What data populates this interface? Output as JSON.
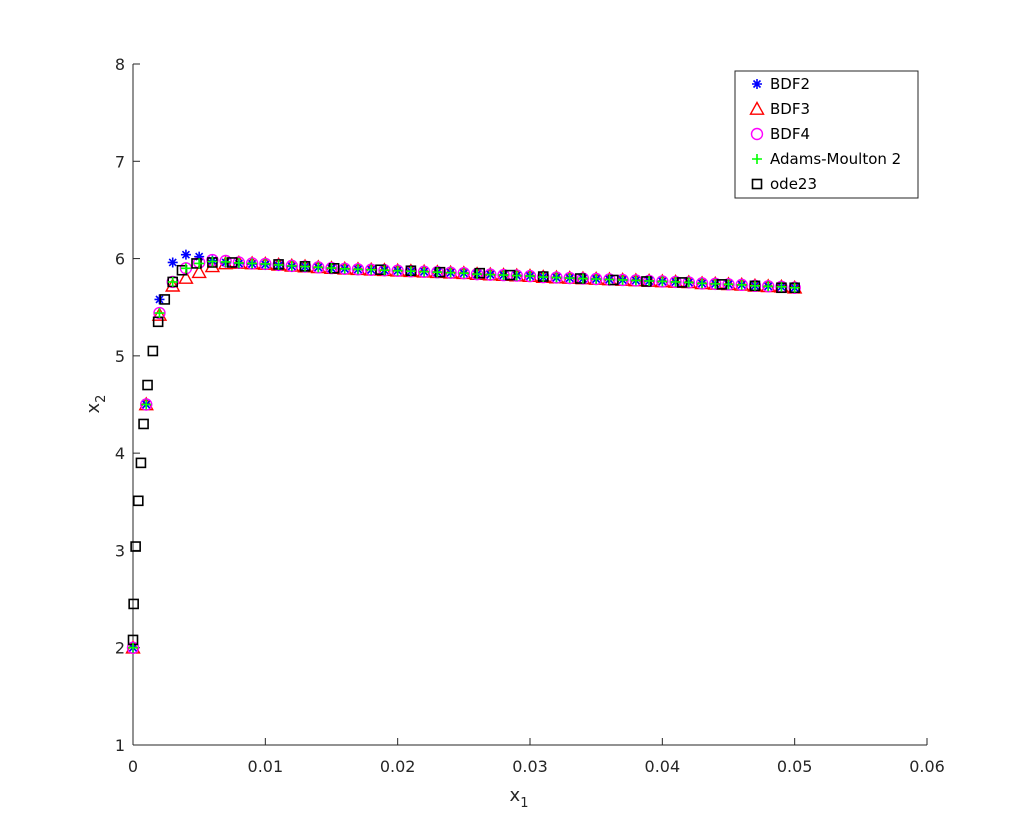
{
  "chart_data": {
    "type": "scatter",
    "xlabel": "x",
    "xlabel_sub": "1",
    "ylabel": "x",
    "ylabel_sub": "2",
    "xlim": [
      0,
      0.06
    ],
    "ylim": [
      1,
      8
    ],
    "xticks": [
      0,
      0.01,
      0.02,
      0.03,
      0.04,
      0.05,
      0.06
    ],
    "xtick_labels": [
      "0",
      "0.01",
      "0.02",
      "0.03",
      "0.04",
      "0.05",
      "0.06"
    ],
    "yticks": [
      1,
      2,
      3,
      4,
      5,
      6,
      7,
      8
    ],
    "ytick_labels": [
      "1",
      "2",
      "3",
      "4",
      "5",
      "6",
      "7",
      "8"
    ],
    "grid": false,
    "legend_position": "top-right",
    "series": [
      {
        "name": "BDF2",
        "marker": "asterisk",
        "color": "#0000ff",
        "x": [
          0,
          0.001,
          0.002,
          0.003,
          0.004,
          0.005,
          0.006,
          0.007,
          0.008,
          0.009,
          0.01,
          0.011,
          0.012,
          0.013,
          0.014,
          0.015,
          0.016,
          0.017,
          0.018,
          0.019,
          0.02,
          0.021,
          0.022,
          0.023,
          0.024,
          0.025,
          0.026,
          0.027,
          0.028,
          0.029,
          0.03,
          0.031,
          0.032,
          0.033,
          0.034,
          0.035,
          0.036,
          0.037,
          0.038,
          0.039,
          0.04,
          0.041,
          0.042,
          0.043,
          0.044,
          0.045,
          0.046,
          0.047,
          0.048,
          0.049,
          0.05
        ],
        "y": [
          2.0,
          4.5,
          5.58,
          5.96,
          6.04,
          6.02,
          5.98,
          5.96,
          5.95,
          5.945,
          5.94,
          5.93,
          5.92,
          5.915,
          5.91,
          5.9,
          5.895,
          5.89,
          5.885,
          5.88,
          5.875,
          5.87,
          5.865,
          5.86,
          5.855,
          5.85,
          5.84,
          5.835,
          5.83,
          5.825,
          5.82,
          5.81,
          5.805,
          5.8,
          5.795,
          5.79,
          5.785,
          5.78,
          5.775,
          5.77,
          5.765,
          5.76,
          5.755,
          5.745,
          5.74,
          5.735,
          5.73,
          5.72,
          5.715,
          5.71,
          5.7
        ]
      },
      {
        "name": "BDF3",
        "marker": "triangle",
        "color": "#ff0000",
        "x": [
          0,
          0.001,
          0.002,
          0.003,
          0.004,
          0.005,
          0.006,
          0.007,
          0.008,
          0.009,
          0.01,
          0.011,
          0.012,
          0.013,
          0.014,
          0.015,
          0.016,
          0.017,
          0.018,
          0.019,
          0.02,
          0.021,
          0.022,
          0.023,
          0.024,
          0.025,
          0.026,
          0.027,
          0.028,
          0.029,
          0.03,
          0.031,
          0.032,
          0.033,
          0.034,
          0.035,
          0.036,
          0.037,
          0.038,
          0.039,
          0.04,
          0.041,
          0.042,
          0.043,
          0.044,
          0.045,
          0.046,
          0.047,
          0.048,
          0.049,
          0.05
        ],
        "y": [
          2.0,
          4.5,
          5.42,
          5.72,
          5.8,
          5.86,
          5.92,
          5.95,
          5.955,
          5.95,
          5.945,
          5.935,
          5.925,
          5.918,
          5.91,
          5.902,
          5.895,
          5.89,
          5.885,
          5.88,
          5.875,
          5.87,
          5.865,
          5.86,
          5.855,
          5.85,
          5.84,
          5.835,
          5.83,
          5.825,
          5.82,
          5.81,
          5.805,
          5.8,
          5.795,
          5.79,
          5.785,
          5.78,
          5.775,
          5.77,
          5.765,
          5.76,
          5.755,
          5.745,
          5.74,
          5.735,
          5.73,
          5.72,
          5.715,
          5.71,
          5.7
        ]
      },
      {
        "name": "BDF4",
        "marker": "circle",
        "color": "#ff00ff",
        "x": [
          0,
          0.001,
          0.002,
          0.003,
          0.004,
          0.005,
          0.006,
          0.007,
          0.008,
          0.009,
          0.01,
          0.011,
          0.012,
          0.013,
          0.014,
          0.015,
          0.016,
          0.017,
          0.018,
          0.019,
          0.02,
          0.021,
          0.022,
          0.023,
          0.024,
          0.025,
          0.026,
          0.027,
          0.028,
          0.029,
          0.03,
          0.031,
          0.032,
          0.033,
          0.034,
          0.035,
          0.036,
          0.037,
          0.038,
          0.039,
          0.04,
          0.041,
          0.042,
          0.043,
          0.044,
          0.045,
          0.046,
          0.047,
          0.048,
          0.049,
          0.05
        ],
        "y": [
          2.0,
          4.5,
          5.44,
          5.76,
          5.9,
          5.96,
          5.985,
          5.975,
          5.96,
          5.95,
          5.945,
          5.935,
          5.925,
          5.918,
          5.91,
          5.902,
          5.895,
          5.89,
          5.885,
          5.88,
          5.875,
          5.87,
          5.865,
          5.86,
          5.855,
          5.85,
          5.84,
          5.835,
          5.83,
          5.825,
          5.82,
          5.81,
          5.805,
          5.8,
          5.795,
          5.79,
          5.785,
          5.78,
          5.775,
          5.77,
          5.765,
          5.76,
          5.755,
          5.745,
          5.74,
          5.735,
          5.73,
          5.72,
          5.715,
          5.71,
          5.7
        ]
      },
      {
        "name": "Adams-Moulton 2",
        "marker": "plus",
        "color": "#00ff00",
        "x": [
          0,
          0.001,
          0.002,
          0.003,
          0.004,
          0.005,
          0.006,
          0.007,
          0.008,
          0.009,
          0.01,
          0.011,
          0.012,
          0.013,
          0.014,
          0.015,
          0.016,
          0.017,
          0.018,
          0.019,
          0.02,
          0.021,
          0.022,
          0.023,
          0.024,
          0.025,
          0.026,
          0.027,
          0.028,
          0.029,
          0.03,
          0.031,
          0.032,
          0.033,
          0.034,
          0.035,
          0.036,
          0.037,
          0.038,
          0.039,
          0.04,
          0.041,
          0.042,
          0.043,
          0.044,
          0.045,
          0.046,
          0.047,
          0.048,
          0.049,
          0.05
        ],
        "y": [
          2.0,
          4.5,
          5.44,
          5.76,
          5.9,
          5.95,
          5.97,
          5.965,
          5.955,
          5.95,
          5.945,
          5.935,
          5.925,
          5.918,
          5.91,
          5.902,
          5.895,
          5.89,
          5.885,
          5.88,
          5.875,
          5.87,
          5.865,
          5.86,
          5.855,
          5.85,
          5.84,
          5.835,
          5.83,
          5.825,
          5.82,
          5.81,
          5.805,
          5.8,
          5.795,
          5.79,
          5.785,
          5.78,
          5.775,
          5.77,
          5.765,
          5.76,
          5.755,
          5.745,
          5.74,
          5.735,
          5.73,
          5.72,
          5.715,
          5.71,
          5.7
        ]
      },
      {
        "name": "ode23",
        "marker": "square",
        "color": "#000000",
        "x": [
          0,
          5e-05,
          0.0002,
          0.0004,
          0.0006,
          0.0008,
          0.0011,
          0.0015,
          0.0019,
          0.0024,
          0.003,
          0.0037,
          0.0048,
          0.006,
          0.0075,
          0.011,
          0.013,
          0.0152,
          0.0187,
          0.021,
          0.0232,
          0.0262,
          0.0285,
          0.031,
          0.0338,
          0.0363,
          0.0388,
          0.0415,
          0.0445,
          0.047,
          0.049,
          0.05
        ],
        "y": [
          2.08,
          2.45,
          3.04,
          3.51,
          3.9,
          4.3,
          4.7,
          5.05,
          5.35,
          5.58,
          5.76,
          5.88,
          5.95,
          5.96,
          5.96,
          5.94,
          5.92,
          5.9,
          5.885,
          5.875,
          5.86,
          5.85,
          5.83,
          5.815,
          5.795,
          5.78,
          5.765,
          5.755,
          5.735,
          5.72,
          5.7,
          5.7
        ]
      }
    ]
  }
}
